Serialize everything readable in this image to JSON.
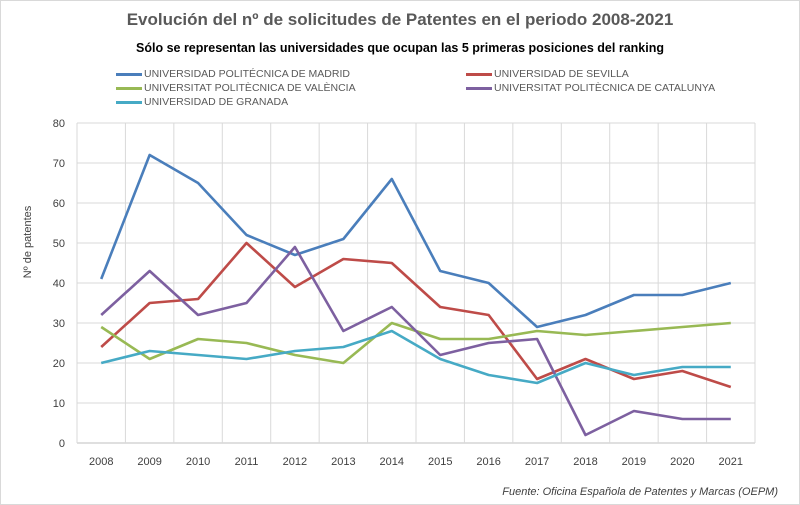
{
  "chart_data": {
    "type": "line",
    "title": "Evolución del nº de solicitudes de Patentes en el periodo 2008-2021",
    "subtitle": "Sólo se representan las universidades que ocupan las 5 primeras posiciones del ranking",
    "ylabel": "Nº de patentes",
    "xlabel": "",
    "source": "Fuente:  Oficina Española de Patentes  y Marcas  (OEPM)",
    "categories": [
      "2008",
      "2009",
      "2010",
      "2011",
      "2012",
      "2013",
      "2014",
      "2015",
      "2016",
      "2017",
      "2018",
      "2019",
      "2020",
      "2021"
    ],
    "ylim": [
      0,
      80
    ],
    "yticks": [
      "0",
      "10",
      "20",
      "30",
      "40",
      "50",
      "60",
      "70",
      "80"
    ],
    "grid": true,
    "legend_position": "top",
    "series": [
      {
        "name": "UNIVERSIDAD POLITÉCNICA DE MADRID",
        "color": "#4a7ebb",
        "values": [
          41,
          72,
          65,
          52,
          47,
          51,
          66,
          43,
          40,
          29,
          32,
          37,
          37,
          40
        ]
      },
      {
        "name": "UNIVERSIDAD DE SEVILLA",
        "color": "#be4b48",
        "values": [
          24,
          35,
          36,
          50,
          39,
          46,
          45,
          34,
          32,
          16,
          21,
          16,
          18,
          14
        ]
      },
      {
        "name": "UNIVERSITAT POLITÈCNICA DE VALÈNCIA",
        "color": "#98b954",
        "values": [
          29,
          21,
          26,
          25,
          22,
          20,
          30,
          26,
          26,
          28,
          27,
          28,
          29,
          30
        ]
      },
      {
        "name": "UNIVERSITAT POLITÈCNICA DE CATALUNYA",
        "color": "#7d60a0",
        "values": [
          32,
          43,
          32,
          35,
          49,
          28,
          34,
          22,
          25,
          26,
          2,
          8,
          6,
          6
        ]
      },
      {
        "name": "UNIVERSIDAD DE GRANADA",
        "color": "#46aac5",
        "values": [
          20,
          23,
          22,
          21,
          23,
          24,
          28,
          21,
          17,
          15,
          20,
          17,
          19,
          19
        ]
      }
    ]
  }
}
